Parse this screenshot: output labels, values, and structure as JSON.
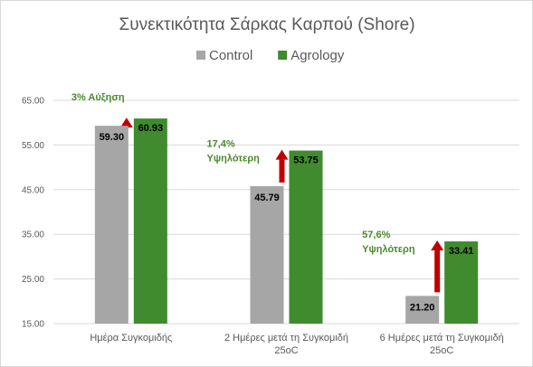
{
  "chart_data": {
    "type": "bar",
    "title": "Συνεκτικότητα Σάρκας Καρπού (Shore)",
    "xlabel": "",
    "ylabel": "",
    "ylim": [
      15,
      65
    ],
    "yticks": [
      "65.00",
      "55.00",
      "45.00",
      "35.00",
      "25.00",
      "15.00"
    ],
    "grid": true,
    "legend_position": "top",
    "categories": [
      [
        "Ημέρα Συγκομιδής"
      ],
      [
        "2 Ημέρες μετά τη Συγκομιδή",
        "25oC"
      ],
      [
        "6 Ημέρες μετά τη Συγκομιδή",
        "25oC"
      ]
    ],
    "series": [
      {
        "name": "Control",
        "color": "#a6a6a6",
        "values": [
          59.3,
          45.79,
          21.2
        ],
        "labels": [
          "59.30",
          "45.79",
          "21.20"
        ]
      },
      {
        "name": "Agrology",
        "color": "#3f8b2e",
        "values": [
          60.93,
          53.75,
          33.41
        ],
        "labels": [
          "60.93",
          "53.75",
          "33.41"
        ]
      }
    ],
    "annotations": [
      [
        "3% Αύξηση"
      ],
      [
        "17,4%",
        "Υψηλότερη"
      ],
      [
        "57,6%",
        "Υψηλότερη"
      ]
    ],
    "arrow_color": "#c00000",
    "annotation_color": "#4a8a2c"
  }
}
